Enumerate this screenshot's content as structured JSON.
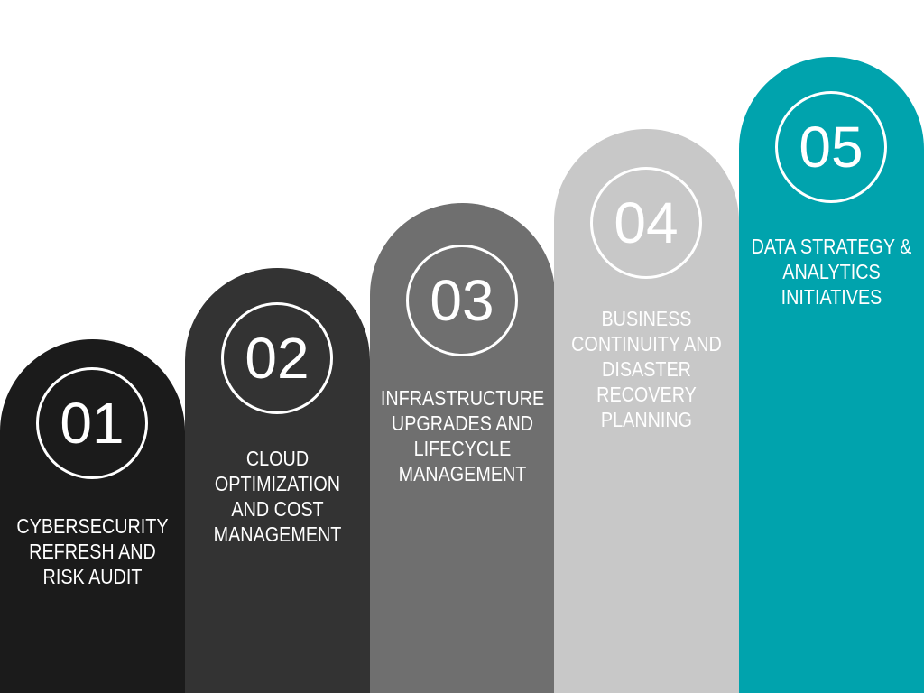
{
  "steps": [
    {
      "number": "01",
      "title": "CYBERSECURITY\nREFRESH AND\nRISK AUDIT",
      "color": "#1b1b1b"
    },
    {
      "number": "02",
      "title": "CLOUD\nOPTIMIZATION\nAND COST\nMANAGEMENT",
      "color": "#333333"
    },
    {
      "number": "03",
      "title": "INFRASTRUCTURE\nUPGRADES AND\nLIFECYCLE\nMANAGEMENT",
      "color": "#6f6f6f"
    },
    {
      "number": "04",
      "title": "BUSINESS\nCONTINUITY AND\nDISASTER\nRECOVERY\nPLANNING",
      "color": "#c8c8c8"
    },
    {
      "number": "05",
      "title": "DATA STRATEGY &\nANALYTICS\nINITIATIVES",
      "color": "#00a3ad"
    }
  ]
}
